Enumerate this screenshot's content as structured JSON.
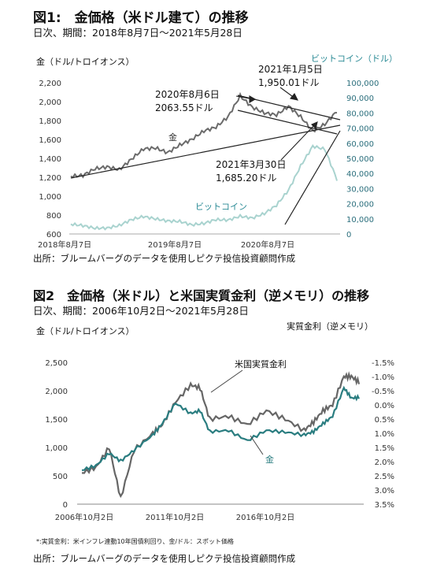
{
  "fig1": {
    "title": "図1:　金価格（米ドル建て）の推移",
    "subtitle": "日次、期間：2018年8月7日～2021年5月28日",
    "left_axis_label": "金（ドル/トロイオンス）",
    "right_axis_label": "ビットコイン（ドル）",
    "source": "出所：ブルームバーグのデータを使用しピクテ投信投資顧問作成",
    "annotations": {
      "a1_l1": "2020年8月6日",
      "a1_l2": "2063.55ドル",
      "a2_l1": "2021年1月5日",
      "a2_l2": "1,950.01ドル",
      "a3_l1": "2021年3月30日",
      "a3_l2": "1,685.20ドル"
    },
    "series_labels": {
      "gold": "金",
      "bitcoin": "ビットコイン"
    }
  },
  "fig2": {
    "title": "図2　金価格（米ドル）と米国実質金利（逆メモリ）の推移",
    "subtitle": "日次、期間：2006年10月2日～2021年5月28日",
    "left_axis_label": "金（ドル/トロイオンス）",
    "right_axis_label": "実質金利（逆メモリ）",
    "series_labels": {
      "rate": "米国実質金利",
      "gold": "金"
    },
    "note": "*:実質金利：米インフレ連動10年国債利回り、金/ドル：スポット価格",
    "source": "出所：ブルームバーグのデータを使用しピクテ投信投資顧問作成"
  },
  "chart_data": [
    {
      "type": "line",
      "title": "図1:　金価格（米ドル建て）の推移",
      "x_tick_labels": [
        "2018年8月7日",
        "2019年8月7日",
        "2020年8月7日"
      ],
      "y_left": {
        "label": "金（ドル/トロイオンス）",
        "ylim": [
          600,
          2200
        ],
        "ticks": [
          "2,200",
          "2,000",
          "1,800",
          "1,600",
          "1,400",
          "1,200",
          "1,000",
          "800",
          "600"
        ]
      },
      "y_right": {
        "label": "ビットコイン（ドル）",
        "ylim": [
          0,
          100000
        ],
        "ticks": [
          "100,000",
          "90,000",
          "80,000",
          "70,000",
          "60,000",
          "50,000",
          "40,000",
          "30,000",
          "20,000",
          "10,000",
          "0"
        ]
      },
      "x": [
        "2018-08",
        "2018-11",
        "2019-01",
        "2019-03",
        "2019-05",
        "2019-06",
        "2019-08",
        "2019-09",
        "2019-11",
        "2020-01",
        "2020-03",
        "2020-04",
        "2020-06",
        "2020-07",
        "2020-08",
        "2020-09",
        "2020-11",
        "2020-12",
        "2021-01",
        "2021-02",
        "2021-03",
        "2021-04",
        "2021-05"
      ],
      "series": [
        {
          "name": "金",
          "axis": "left",
          "values": [
            1210,
            1220,
            1290,
            1310,
            1280,
            1390,
            1500,
            1510,
            1460,
            1540,
            1600,
            1690,
            1730,
            1840,
            2060,
            1940,
            1880,
            1860,
            1950,
            1840,
            1690,
            1760,
            1900
          ]
        },
        {
          "name": "ビットコイン",
          "axis": "right",
          "values": [
            6500,
            5500,
            3800,
            3900,
            5600,
            9500,
            11500,
            10000,
            8600,
            8300,
            6000,
            7000,
            9500,
            9200,
            11700,
            10500,
            13500,
            19000,
            29000,
            45000,
            58000,
            56000,
            36000
          ]
        }
      ],
      "annotations": [
        {
          "text": "2020年8月6日 2063.55ドル"
        },
        {
          "text": "2021年1月5日 1,950.01ドル"
        },
        {
          "text": "2021年3月30日 1,685.20ドル"
        }
      ],
      "legend": "inline-labels"
    },
    {
      "type": "line",
      "title": "図2　金価格（米ドル）と米国実質金利（逆メモリ）の推移",
      "x_tick_labels": [
        "2006年10月2日",
        "2011年10月2日",
        "2016年10月2日"
      ],
      "y_left": {
        "label": "金（ドル/トロイオンス）",
        "ylim": [
          0,
          2500
        ],
        "ticks": [
          "2,500",
          "2,000",
          "1,500",
          "1,000",
          "500",
          "0"
        ]
      },
      "y_right": {
        "label": "実質金利（逆メモリ）",
        "ylim": [
          3.5,
          -1.5
        ],
        "inverted": true,
        "ticks": [
          "-1.5%",
          "-1.0%",
          "-0.5%",
          "0.0%",
          "0.5%",
          "1.0%",
          "1.5%",
          "2.0%",
          "2.5%",
          "3.0%",
          "3.5%"
        ]
      },
      "x": [
        2006.75,
        2007.5,
        2008.2,
        2008.8,
        2009.5,
        2010.5,
        2011.0,
        2011.7,
        2012.5,
        2013.0,
        2013.5,
        2014.5,
        2015.5,
        2016.5,
        2017.5,
        2018.5,
        2019.0,
        2019.5,
        2020.0,
        2020.6,
        2021.0,
        2021.4
      ],
      "series": [
        {
          "name": "金",
          "axis": "left",
          "values": [
            600,
            680,
            900,
            760,
            950,
            1220,
            1420,
            1780,
            1600,
            1650,
            1280,
            1300,
            1120,
            1300,
            1270,
            1220,
            1280,
            1420,
            1550,
            2050,
            1870,
            1880
          ]
        },
        {
          "name": "米国実質金利",
          "axis": "right",
          "values": [
            2.4,
            2.2,
            1.5,
            3.3,
            1.6,
            1.0,
            0.7,
            -0.1,
            -0.7,
            -0.6,
            0.5,
            0.4,
            0.7,
            0.2,
            0.5,
            0.9,
            0.6,
            0.2,
            0.0,
            -1.0,
            -1.0,
            -0.8
          ]
        }
      ],
      "legend": "inline-labels"
    }
  ]
}
